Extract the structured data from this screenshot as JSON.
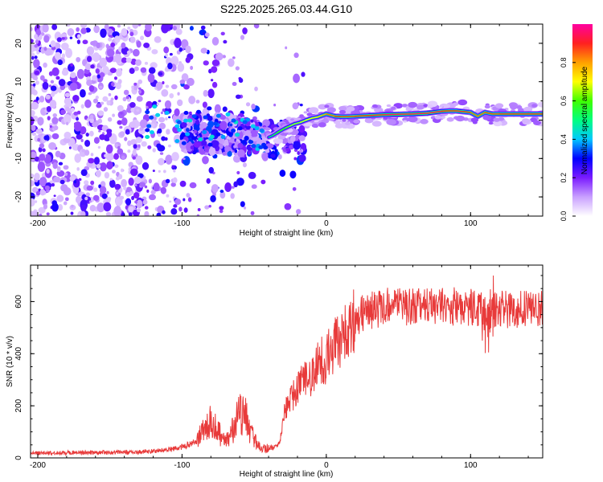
{
  "title": "S225.2025.265.03.44.G10",
  "chart_data": [
    {
      "type": "heatmap",
      "name": "spectrogram",
      "xlabel": "Height of straight line (km)",
      "ylabel": "Frequency (Hz)",
      "xlim": [
        -205,
        150
      ],
      "ylim": [
        -25,
        25
      ],
      "xticks": [
        -200,
        -100,
        0,
        100
      ],
      "yticks": [
        20,
        10,
        0,
        -10,
        -20
      ],
      "colorbar": {
        "label": "Normalized spectral amplitude",
        "range": [
          0,
          1
        ],
        "ticks": [
          "0.0",
          "0.2",
          "0.4",
          "0.6",
          "0.8"
        ],
        "tick_values": [
          0,
          0.2,
          0.4,
          0.6,
          0.8
        ],
        "colors": [
          "#ffffff",
          "#c9a0ff",
          "#7a1bff",
          "#0000ff",
          "#00c8ff",
          "#00ff80",
          "#40ff00",
          "#ffff00",
          "#ffa000",
          "#ff2020",
          "#ff00a0"
        ]
      },
      "ridge": {
        "x": [
          -40,
          -37,
          -34,
          -31,
          -28,
          -25,
          -22,
          -18,
          -14,
          -10,
          -6,
          -3,
          0,
          3,
          6,
          10,
          15,
          20,
          30,
          40,
          50,
          60,
          70,
          80,
          85,
          90,
          95,
          100,
          103,
          105,
          108,
          110,
          115,
          120,
          130,
          140,
          150
        ],
        "y": [
          -4.5,
          -4,
          -3.3,
          -2.6,
          -2,
          -1.5,
          -1,
          -0.6,
          0,
          0.5,
          0.8,
          1.2,
          1.6,
          1.3,
          1.0,
          0.9,
          0.9,
          1.0,
          1.2,
          1.4,
          1.5,
          1.6,
          1.8,
          2.3,
          2.4,
          2.4,
          2.2,
          2.0,
          1.4,
          1.0,
          1.6,
          2.0,
          1.6,
          1.6,
          1.6,
          1.6,
          1.6
        ],
        "amplitude": [
          0.5,
          0.55,
          0.6,
          0.6,
          0.62,
          0.65,
          0.65,
          0.68,
          0.7,
          0.72,
          0.75,
          0.8,
          0.9,
          0.85,
          0.9,
          0.9,
          0.88,
          0.9,
          0.92,
          0.95,
          0.95,
          0.95,
          0.95,
          0.95,
          0.9,
          0.95,
          0.92,
          0.9,
          0.85,
          0.9,
          0.85,
          0.9,
          0.88,
          0.9,
          0.9,
          0.9,
          0.9
        ]
      }
    },
    {
      "type": "line",
      "name": "snr",
      "xlabel": "Height of straight line (km)",
      "ylabel": "SNR (10 * v/v)",
      "xlim": [
        -205,
        150
      ],
      "ylim": [
        0,
        740
      ],
      "xticks": [
        -200,
        -100,
        0,
        100
      ],
      "yticks": [
        0,
        200,
        400,
        600
      ],
      "color": "#e83a3a",
      "series": [
        {
          "name": "SNR",
          "x": [
            -205,
            -190,
            -170,
            -150,
            -130,
            -115,
            -105,
            -98,
            -92,
            -88,
            -84,
            -80,
            -77,
            -74,
            -71,
            -68,
            -65,
            -62,
            -59,
            -56,
            -53,
            -50,
            -47,
            -44,
            -41,
            -38,
            -35,
            -32,
            -29,
            -27,
            -25,
            -23,
            -21,
            -19,
            -17,
            -15,
            -13,
            -11,
            -9,
            -7,
            -5,
            -3,
            -1,
            1,
            3,
            5,
            8,
            11,
            14,
            17,
            20,
            24,
            28,
            32,
            36,
            40,
            45,
            50,
            55,
            60,
            65,
            70,
            75,
            80,
            85,
            90,
            95,
            100,
            104,
            108,
            110,
            111,
            112,
            113,
            114,
            116,
            118,
            122,
            126,
            132,
            138,
            144,
            150
          ],
          "y": [
            20,
            18,
            22,
            20,
            23,
            28,
            35,
            45,
            60,
            80,
            110,
            140,
            130,
            95,
            65,
            70,
            105,
            150,
            175,
            155,
            110,
            70,
            45,
            35,
            38,
            42,
            40,
            70,
            170,
            200,
            220,
            240,
            265,
            280,
            285,
            300,
            320,
            300,
            320,
            340,
            370,
            380,
            370,
            390,
            420,
            430,
            440,
            460,
            480,
            510,
            530,
            550,
            560,
            570,
            575,
            578,
            580,
            582,
            585,
            580,
            582,
            585,
            580,
            585,
            582,
            580,
            578,
            575,
            570,
            560,
            520,
            470,
            480,
            560,
            600,
            580,
            575,
            572,
            570,
            570,
            568,
            570,
            568
          ]
        }
      ]
    }
  ]
}
